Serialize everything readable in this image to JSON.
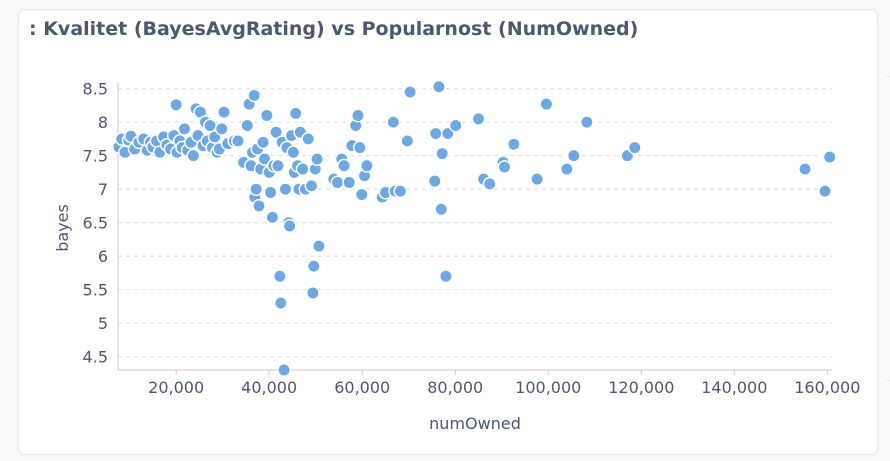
{
  "card": {
    "title": ": Kvalitet (BayesAvgRating) vs Popularnost (NumOwned)"
  },
  "colors": {
    "point_fill": "#6ba8e5",
    "point_stroke": "#ffffff",
    "grid": "#d7dbe0",
    "axis_text": "#4c5773",
    "axis_line": "#c7ccd2"
  },
  "chart_data": {
    "type": "scatter",
    "title": ": Kvalitet (BayesAvgRating) vs Popularnost (NumOwned)",
    "xlabel": "numOwned",
    "ylabel": "bayes",
    "xlim": [
      7500,
      161000
    ],
    "ylim": [
      4.3,
      8.6
    ],
    "x_ticks": [
      20000,
      40000,
      60000,
      80000,
      100000,
      120000,
      140000,
      160000
    ],
    "x_tick_labels": [
      "20,000",
      "40,000",
      "60,000",
      "80,000",
      "100,000",
      "120,000",
      "140,000",
      "160,000"
    ],
    "y_ticks": [
      4.5,
      5,
      5.5,
      6,
      6.5,
      7,
      7.5,
      8,
      8.5
    ],
    "y_tick_labels": [
      "4.5",
      "5",
      "5.5",
      "6",
      "6.5",
      "7",
      "7.5",
      "8",
      "8.5"
    ],
    "grid": "horizontal dashed",
    "legend": "none",
    "points": [
      [
        7700,
        7.63
      ],
      [
        8300,
        7.75
      ],
      [
        9000,
        7.55
      ],
      [
        9800,
        7.73
      ],
      [
        10300,
        7.79
      ],
      [
        11100,
        7.6
      ],
      [
        12000,
        7.7
      ],
      [
        13000,
        7.75
      ],
      [
        13800,
        7.58
      ],
      [
        14500,
        7.7
      ],
      [
        15000,
        7.63
      ],
      [
        15800,
        7.72
      ],
      [
        16500,
        7.55
      ],
      [
        17300,
        7.78
      ],
      [
        18000,
        7.66
      ],
      [
        18800,
        7.6
      ],
      [
        19500,
        7.8
      ],
      [
        20200,
        7.55
      ],
      [
        20800,
        7.72
      ],
      [
        21300,
        7.62
      ],
      [
        21800,
        7.9
      ],
      [
        22500,
        7.58
      ],
      [
        23200,
        7.7
      ],
      [
        23700,
        7.5
      ],
      [
        24300,
        8.2
      ],
      [
        24700,
        7.8
      ],
      [
        25200,
        8.15
      ],
      [
        25800,
        7.65
      ],
      [
        26300,
        8.0
      ],
      [
        26700,
        7.72
      ],
      [
        27300,
        7.95
      ],
      [
        27800,
        7.62
      ],
      [
        28300,
        7.78
      ],
      [
        28800,
        7.55
      ],
      [
        29300,
        7.6
      ],
      [
        29800,
        7.9
      ],
      [
        30300,
        8.15
      ],
      [
        31100,
        7.68
      ],
      [
        20000,
        8.26
      ],
      [
        32500,
        7.72
      ],
      [
        33300,
        7.72
      ],
      [
        34500,
        7.4
      ],
      [
        35300,
        7.95
      ],
      [
        35700,
        8.27
      ],
      [
        36100,
        7.35
      ],
      [
        36400,
        7.55
      ],
      [
        36800,
        8.4
      ],
      [
        36900,
        6.88
      ],
      [
        37200,
        7.0
      ],
      [
        37500,
        7.6
      ],
      [
        37800,
        6.75
      ],
      [
        38200,
        7.3
      ],
      [
        38700,
        7.7
      ],
      [
        39000,
        7.45
      ],
      [
        39500,
        8.1
      ],
      [
        40000,
        7.25
      ],
      [
        40300,
        6.95
      ],
      [
        40700,
        6.58
      ],
      [
        41000,
        7.35
      ],
      [
        41500,
        7.85
      ],
      [
        41900,
        7.35
      ],
      [
        42300,
        5.7
      ],
      [
        42500,
        5.3
      ],
      [
        42800,
        7.7
      ],
      [
        43200,
        4.3
      ],
      [
        43500,
        7.0
      ],
      [
        43800,
        7.62
      ],
      [
        44200,
        6.5
      ],
      [
        44400,
        6.45
      ],
      [
        44800,
        7.8
      ],
      [
        45200,
        7.55
      ],
      [
        45400,
        7.25
      ],
      [
        45700,
        8.13
      ],
      [
        46100,
        7.35
      ],
      [
        46400,
        7.0
      ],
      [
        46700,
        7.85
      ],
      [
        47200,
        7.3
      ],
      [
        47800,
        7.0
      ],
      [
        48400,
        7.75
      ],
      [
        49100,
        7.05
      ],
      [
        49400,
        5.45
      ],
      [
        49600,
        5.85
      ],
      [
        49900,
        7.3
      ],
      [
        50300,
        7.45
      ],
      [
        50700,
        6.15
      ],
      [
        53900,
        7.15
      ],
      [
        54700,
        7.1
      ],
      [
        55600,
        7.45
      ],
      [
        56100,
        7.35
      ],
      [
        57200,
        7.1
      ],
      [
        57800,
        7.65
      ],
      [
        58600,
        7.95
      ],
      [
        59100,
        8.1
      ],
      [
        59500,
        7.62
      ],
      [
        59900,
        6.92
      ],
      [
        60500,
        7.2
      ],
      [
        61000,
        7.35
      ],
      [
        64300,
        6.88
      ],
      [
        65000,
        6.95
      ],
      [
        66700,
        8.0
      ],
      [
        67100,
        6.97
      ],
      [
        68200,
        6.97
      ],
      [
        69700,
        7.72
      ],
      [
        70300,
        8.45
      ],
      [
        75600,
        7.12
      ],
      [
        75800,
        7.83
      ],
      [
        76500,
        8.53
      ],
      [
        77000,
        6.7
      ],
      [
        77200,
        7.53
      ],
      [
        78000,
        5.7
      ],
      [
        78400,
        7.83
      ],
      [
        80100,
        7.95
      ],
      [
        85000,
        8.05
      ],
      [
        86100,
        7.15
      ],
      [
        87400,
        7.08
      ],
      [
        90300,
        7.4
      ],
      [
        90600,
        7.33
      ],
      [
        92600,
        7.67
      ],
      [
        97600,
        7.15
      ],
      [
        99600,
        8.27
      ],
      [
        104000,
        7.3
      ],
      [
        105500,
        7.5
      ],
      [
        108300,
        8.0
      ],
      [
        117000,
        7.5
      ],
      [
        118600,
        7.62
      ],
      [
        155200,
        7.3
      ],
      [
        159500,
        6.97
      ],
      [
        160500,
        7.48
      ]
    ]
  }
}
